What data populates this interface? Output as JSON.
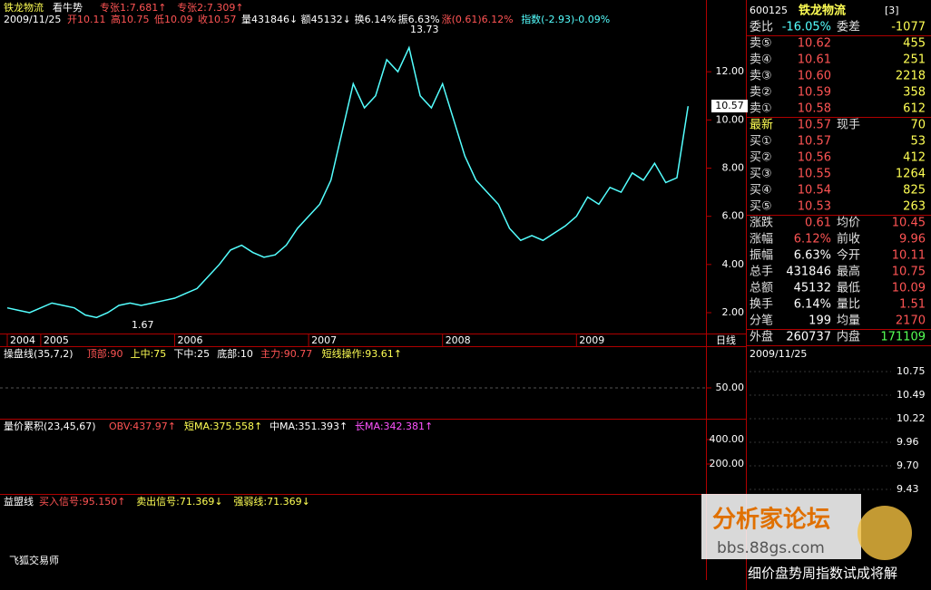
{
  "header": {
    "title": "铁龙物流",
    "indicator": "看牛势",
    "items": [
      {
        "text": "专张1:7.681↑",
        "color": "#ff5454"
      },
      {
        "text": "专张2:7.309↑",
        "color": "#ff5454"
      }
    ]
  },
  "info_line": [
    {
      "text": "2009/11/25",
      "color": "#ffffff"
    },
    {
      "text": "开10.11",
      "color": "#ff5454"
    },
    {
      "text": "高10.75",
      "color": "#ff5454"
    },
    {
      "text": "低10.09",
      "color": "#ff5454"
    },
    {
      "text": "收10.57",
      "color": "#ff5454"
    },
    {
      "text": "量431846↓",
      "color": "#ffffff"
    },
    {
      "text": "额45132↓",
      "color": "#ffffff"
    },
    {
      "text": "换6.14%",
      "color": "#ffffff"
    },
    {
      "text": "振6.63%",
      "color": "#ffffff"
    },
    {
      "text": "涨(0.61)6.12%",
      "color": "#ff5454"
    },
    {
      "text": "指数(-2.93)-0.09%",
      "color": "#54ffff"
    }
  ],
  "chart_data": {
    "type": "line",
    "categories": [
      "2004",
      null,
      null,
      "2005",
      null,
      null,
      null,
      null,
      null,
      null,
      null,
      null,
      null,
      null,
      null,
      "2006",
      null,
      null,
      null,
      null,
      null,
      null,
      null,
      null,
      null,
      null,
      null,
      "2007",
      null,
      null,
      null,
      null,
      null,
      null,
      null,
      null,
      null,
      null,
      null,
      "2008",
      null,
      null,
      null,
      null,
      null,
      null,
      null,
      null,
      null,
      null,
      null,
      "2009",
      null,
      null,
      null,
      null,
      null,
      null,
      null,
      null,
      null,
      null
    ],
    "series": [
      {
        "name": "铁龙物流",
        "color": "#54ffff",
        "values": [
          2.2,
          2.1,
          2.0,
          2.2,
          2.4,
          2.3,
          2.2,
          1.9,
          1.8,
          2.0,
          2.3,
          2.4,
          2.3,
          2.4,
          2.5,
          2.6,
          2.8,
          3.0,
          3.5,
          4.0,
          4.6,
          4.8,
          4.5,
          4.3,
          4.4,
          4.8,
          5.5,
          6.0,
          6.5,
          7.5,
          9.5,
          11.5,
          10.5,
          11.0,
          12.5,
          12.0,
          13.0,
          11.0,
          10.5,
          11.5,
          10.0,
          8.5,
          7.5,
          7.0,
          6.5,
          5.5,
          5.0,
          5.2,
          5.0,
          5.3,
          5.6,
          6.0,
          6.8,
          6.5,
          7.2,
          7.0,
          7.8,
          7.5,
          8.2,
          7.4,
          7.6,
          10.57
        ]
      }
    ],
    "ylim": [
      1.36,
      13.85
    ],
    "yticks": [
      {
        "value": 2,
        "label": "2.00"
      },
      {
        "value": 4,
        "label": "4.00"
      },
      {
        "value": 6,
        "label": "6.00"
      },
      {
        "value": 8,
        "label": "8.00"
      },
      {
        "value": 10,
        "label": "10.00"
      },
      {
        "value": 12,
        "label": "12.00"
      }
    ],
    "annotations": [
      "13.73",
      "1.67",
      "10.57"
    ],
    "period_label": "日线"
  },
  "sub_panels": [
    {
      "items": [
        {
          "text": "操盘线(35,7,2)",
          "color": "#ffffff"
        },
        {
          "text": "顶部:90",
          "color": "#ff5454"
        },
        {
          "text": "上中:75",
          "color": "#ffff54"
        },
        {
          "text": "下中:25",
          "color": "#ffffff"
        },
        {
          "text": "底部:10",
          "color": "#ffffff"
        },
        {
          "text": "主力:90.77",
          "color": "#ff5454"
        },
        {
          "text": "短线操作:93.61↑",
          "color": "#ffff54"
        }
      ],
      "axis": [
        "50.00"
      ]
    },
    {
      "items": [
        {
          "text": "量价累积(23,45,67)",
          "color": "#ffffff"
        },
        {
          "text": "OBV:437.97↑",
          "color": "#ff5454"
        },
        {
          "text": "短MA:375.558↑",
          "color": "#ffff54"
        },
        {
          "text": "中MA:351.393↑",
          "color": "#ffffff"
        },
        {
          "text": "长MA:342.381↑",
          "color": "#ff54ff"
        }
      ],
      "axis": [
        "400.00",
        "200.00"
      ]
    },
    {
      "items": [
        {
          "text": "益盟线",
          "color": "#ffffff"
        },
        {
          "text": "买入信号:95.150↑",
          "color": "#ff5454"
        },
        {
          "text": "卖出信号:71.369↓",
          "color": "#ffff54"
        },
        {
          "text": "强弱线:71.369↓",
          "color": "#ffff54"
        }
      ],
      "axis": []
    }
  ],
  "footer": "飞狐交易师",
  "quote": {
    "code": "600125",
    "name": "铁龙物流",
    "tag": "[3]",
    "rows": [
      [
        "委比",
        "-16.05%",
        "委差",
        "-1077"
      ],
      [
        "卖⑤",
        "10.62",
        "455"
      ],
      [
        "卖④",
        "10.61",
        "251"
      ],
      [
        "卖③",
        "10.60",
        "2218"
      ],
      [
        "卖②",
        "10.59",
        "358"
      ],
      [
        "卖①",
        "10.58",
        "612"
      ],
      [
        "最新",
        "10.57",
        "现手",
        "70"
      ],
      [
        "买①",
        "10.57",
        "53"
      ],
      [
        "买②",
        "10.56",
        "412"
      ],
      [
        "买③",
        "10.55",
        "1264"
      ],
      [
        "买④",
        "10.54",
        "825"
      ],
      [
        "买⑤",
        "10.53",
        "263"
      ],
      [
        "涨跌",
        "0.61",
        "均价",
        "10.45"
      ],
      [
        "涨幅",
        "6.12%",
        "前收",
        "9.96"
      ],
      [
        "振幅",
        "6.63%",
        "今开",
        "10.11"
      ],
      [
        "总手",
        "431846",
        "最高",
        "10.75"
      ],
      [
        "总额",
        "45132",
        "最低",
        "10.09"
      ],
      [
        "换手",
        "6.14%",
        "量比",
        "1.51"
      ],
      [
        "分笔",
        "199",
        "均量",
        "2170"
      ],
      [
        "外盘",
        "260737",
        "内盘",
        "171109"
      ]
    ]
  },
  "intraday": {
    "date": "2009/11/25",
    "axis": [
      "10.75",
      "10.49",
      "10.22",
      "9.96",
      "9.70",
      "9.43"
    ]
  },
  "watermark": {
    "title": "分析家论坛",
    "url": "bbs.88gs.com",
    "caption": "细价盘势周指数试成将解"
  }
}
